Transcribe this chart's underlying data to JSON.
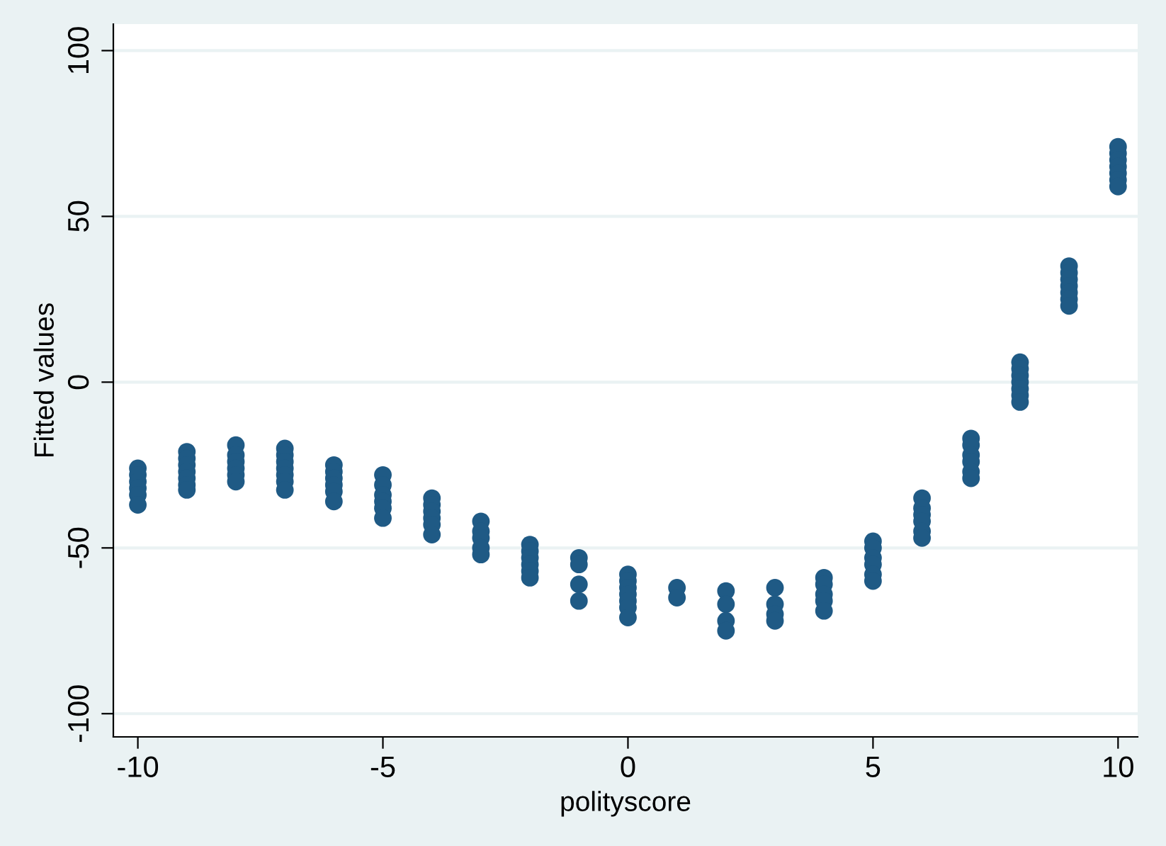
{
  "chart_data": {
    "type": "scatter",
    "xlabel": "polityscore",
    "ylabel": "Fitted values",
    "xlim": [
      -10.5,
      10.4
    ],
    "ylim": [
      -107,
      108
    ],
    "xticks": [
      -10,
      -5,
      0,
      5,
      10
    ],
    "yticks": [
      -100,
      -50,
      0,
      50,
      100
    ],
    "grid": "y",
    "marker": "circle",
    "legend": false,
    "series": [
      {
        "color": "#1f5a85",
        "x": [
          -10,
          -10,
          -10,
          -10,
          -10,
          -10,
          -9,
          -9,
          -9,
          -9,
          -9,
          -9,
          -9,
          -8,
          -8,
          -8,
          -8,
          -8,
          -8,
          -7,
          -7,
          -7,
          -7,
          -7,
          -7,
          -7,
          -6,
          -6,
          -6,
          -6,
          -6,
          -6,
          -5,
          -5,
          -5,
          -5,
          -5,
          -5,
          -4,
          -4,
          -4,
          -4,
          -4,
          -4,
          -3,
          -3,
          -3,
          -3,
          -3,
          -2,
          -2,
          -2,
          -2,
          -2,
          -2,
          -1,
          -1,
          -1,
          -1,
          0,
          0,
          0,
          0,
          0,
          0,
          0,
          1,
          1,
          2,
          2,
          2,
          2,
          3,
          3,
          3,
          3,
          4,
          4,
          4,
          4,
          4,
          5,
          5,
          5,
          5,
          5,
          5,
          6,
          6,
          6,
          6,
          6,
          6,
          7,
          7,
          7,
          7,
          7,
          7,
          8,
          8,
          8,
          8,
          8,
          8,
          8,
          9,
          9,
          9,
          9,
          9,
          9,
          9,
          10,
          10,
          10,
          10,
          10,
          10,
          10
        ],
        "values": [
          -26,
          -28,
          -30,
          -32,
          -34,
          -37,
          -21,
          -23,
          -25,
          -27,
          -29,
          -31,
          -32.5,
          -19,
          -22,
          -24,
          -26,
          -28,
          -30,
          -20,
          -22,
          -24,
          -26,
          -28,
          -30,
          -32.5,
          -25,
          -27,
          -29,
          -31,
          -33,
          -36,
          -28,
          -31,
          -34,
          -36,
          -38,
          -41,
          -35,
          -37,
          -39,
          -41,
          -43,
          -46,
          -42,
          -45,
          -47,
          -50,
          -52,
          -49,
          -51,
          -53,
          -55,
          -57,
          -59,
          -53,
          -55,
          -61,
          -66,
          -58,
          -60,
          -62,
          -64,
          -66,
          -68,
          -71,
          -62,
          -65,
          -63,
          -67,
          -72,
          -75,
          -62,
          -67,
          -70,
          -72,
          -59,
          -61,
          -64,
          -66,
          -69,
          -48,
          -50,
          -53,
          -55,
          -58,
          -60,
          -35,
          -38,
          -40,
          -42,
          -45,
          -47,
          -17,
          -19,
          -22,
          -24,
          -27,
          -29,
          6,
          4,
          2,
          0,
          -2,
          -4,
          -6,
          35,
          33,
          31,
          29,
          27,
          25,
          23,
          71,
          69,
          67,
          65,
          63,
          61,
          59
        ]
      }
    ]
  }
}
